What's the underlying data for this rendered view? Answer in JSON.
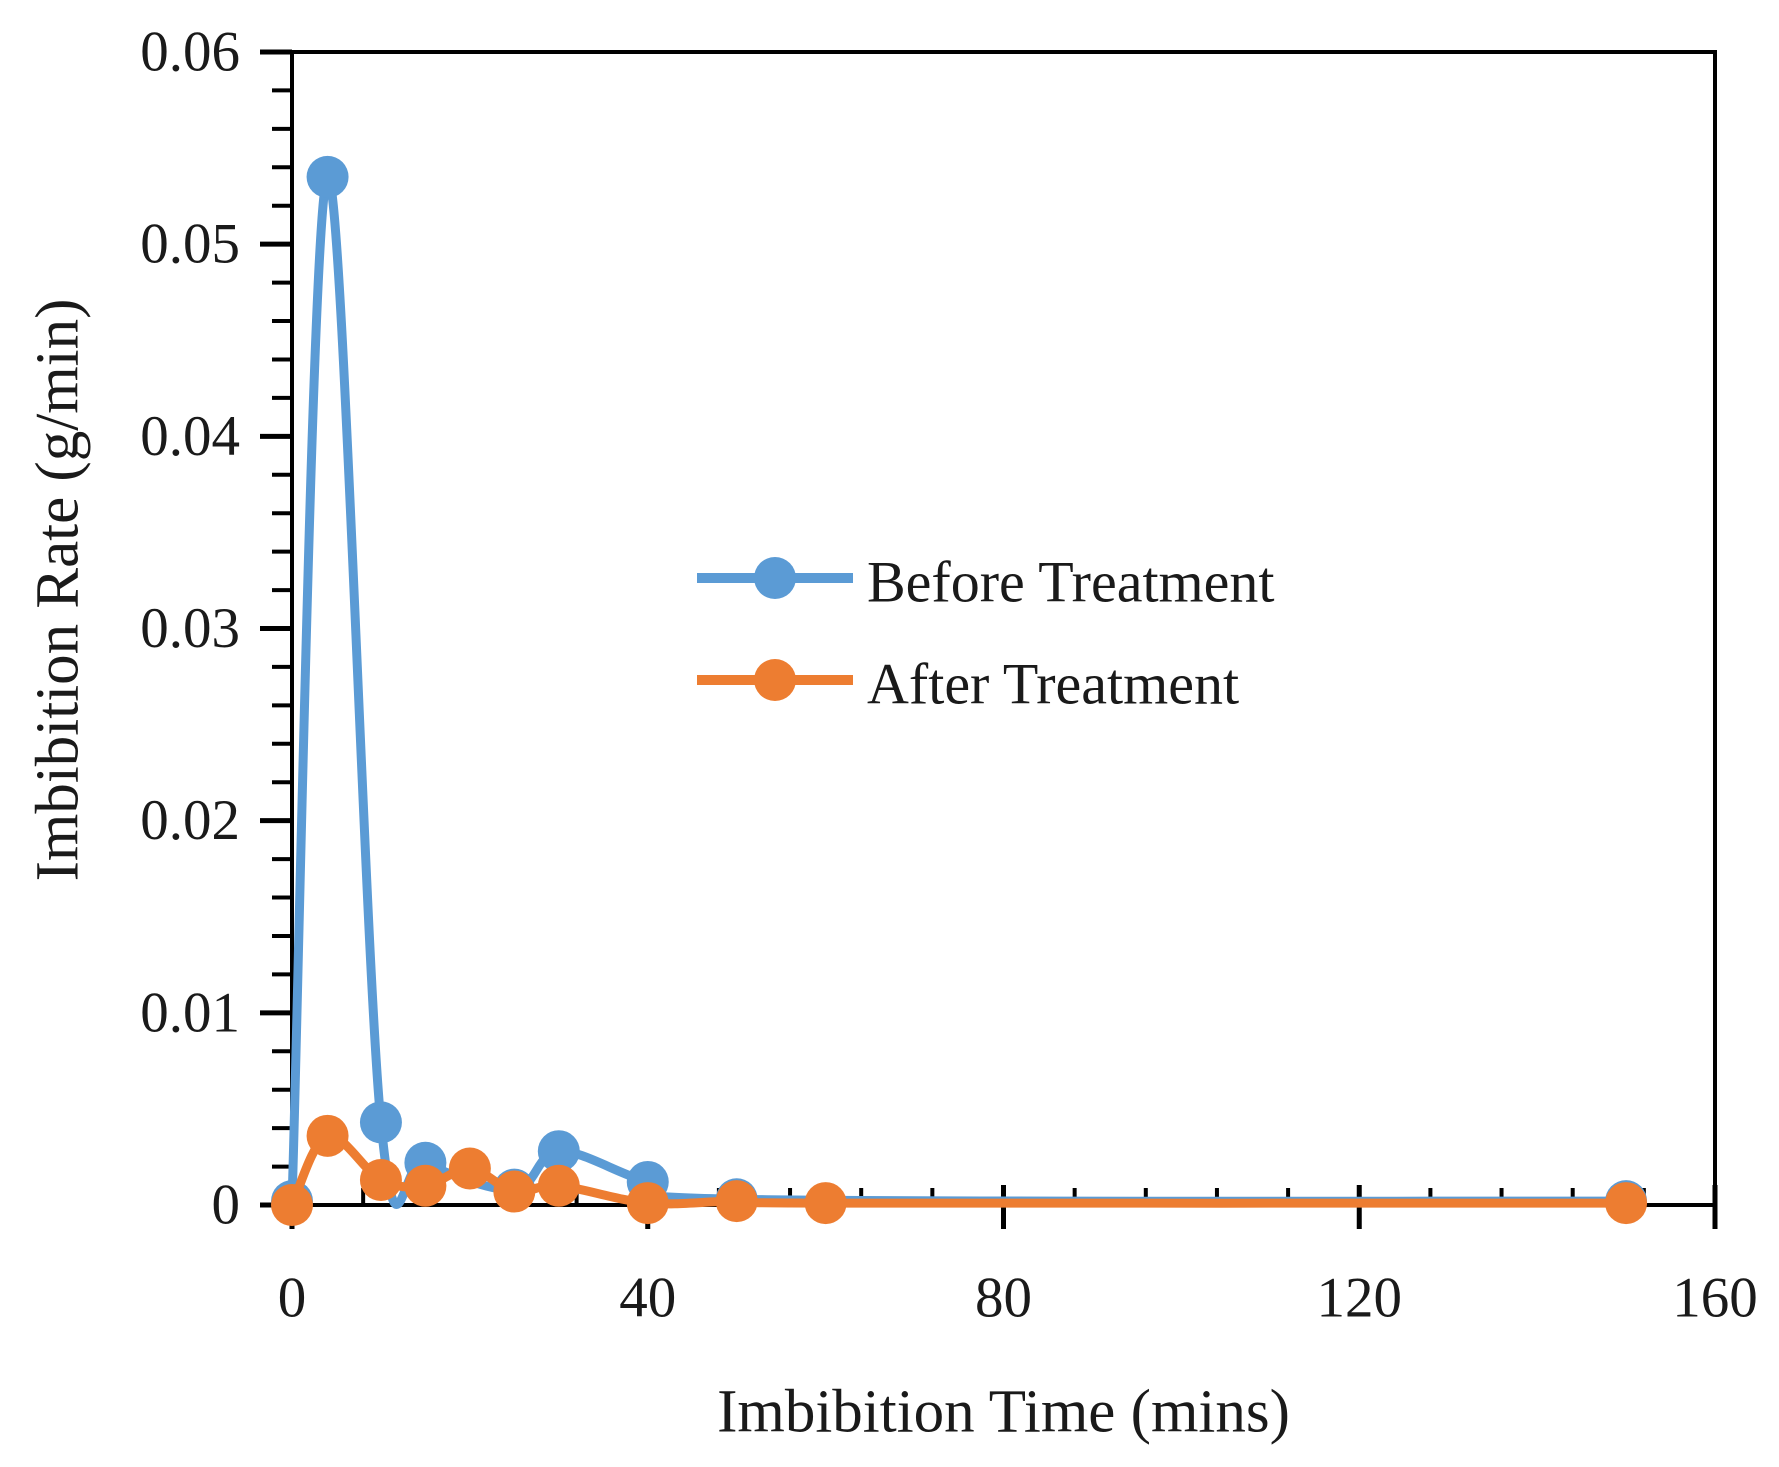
{
  "chart_data": {
    "type": "line",
    "title": "",
    "xlabel": "Imbibition Time (mins)",
    "ylabel": "Imbibition Rate (g/min)",
    "xlim": [
      0,
      160
    ],
    "ylim": [
      0,
      0.06
    ],
    "x_major_ticks": [
      0,
      40,
      80,
      120,
      160
    ],
    "x_tick_labels": [
      "0",
      "40",
      "80",
      "120",
      "160"
    ],
    "x_minor_step": 8,
    "y_major_ticks": [
      0,
      0.01,
      0.02,
      0.03,
      0.04,
      0.05,
      0.06
    ],
    "y_tick_labels": [
      "0",
      "0.01",
      "0.02",
      "0.03",
      "0.04",
      "0.05",
      "0.06"
    ],
    "y_minor_step": 0.002,
    "grid": false,
    "legend_position": "inside-center",
    "legend": [
      "Before Treatment",
      "After Treatment"
    ],
    "series": [
      {
        "name": "Before Treatment",
        "color": "#5B9BD5",
        "x": [
          0,
          4,
          10,
          15,
          25,
          30,
          40,
          50,
          150
        ],
        "y": [
          0.0002,
          0.0535,
          0.0043,
          0.0022,
          0.0008,
          0.0028,
          0.0012,
          0.0003,
          0.0002
        ]
      },
      {
        "name": "After Treatment",
        "color": "#ED7D31",
        "x": [
          0,
          4,
          10,
          15,
          20,
          25,
          30,
          40,
          50,
          60,
          150
        ],
        "y": [
          0.0,
          0.0036,
          0.0013,
          0.001,
          0.0019,
          0.0007,
          0.001,
          0.0001,
          0.0002,
          0.0001,
          0.0001
        ]
      }
    ]
  },
  "colors": {
    "axis": "#000000",
    "text": "#1a1a1a",
    "background": "#ffffff",
    "series_before": "#5B9BD5",
    "series_after": "#ED7D31"
  }
}
